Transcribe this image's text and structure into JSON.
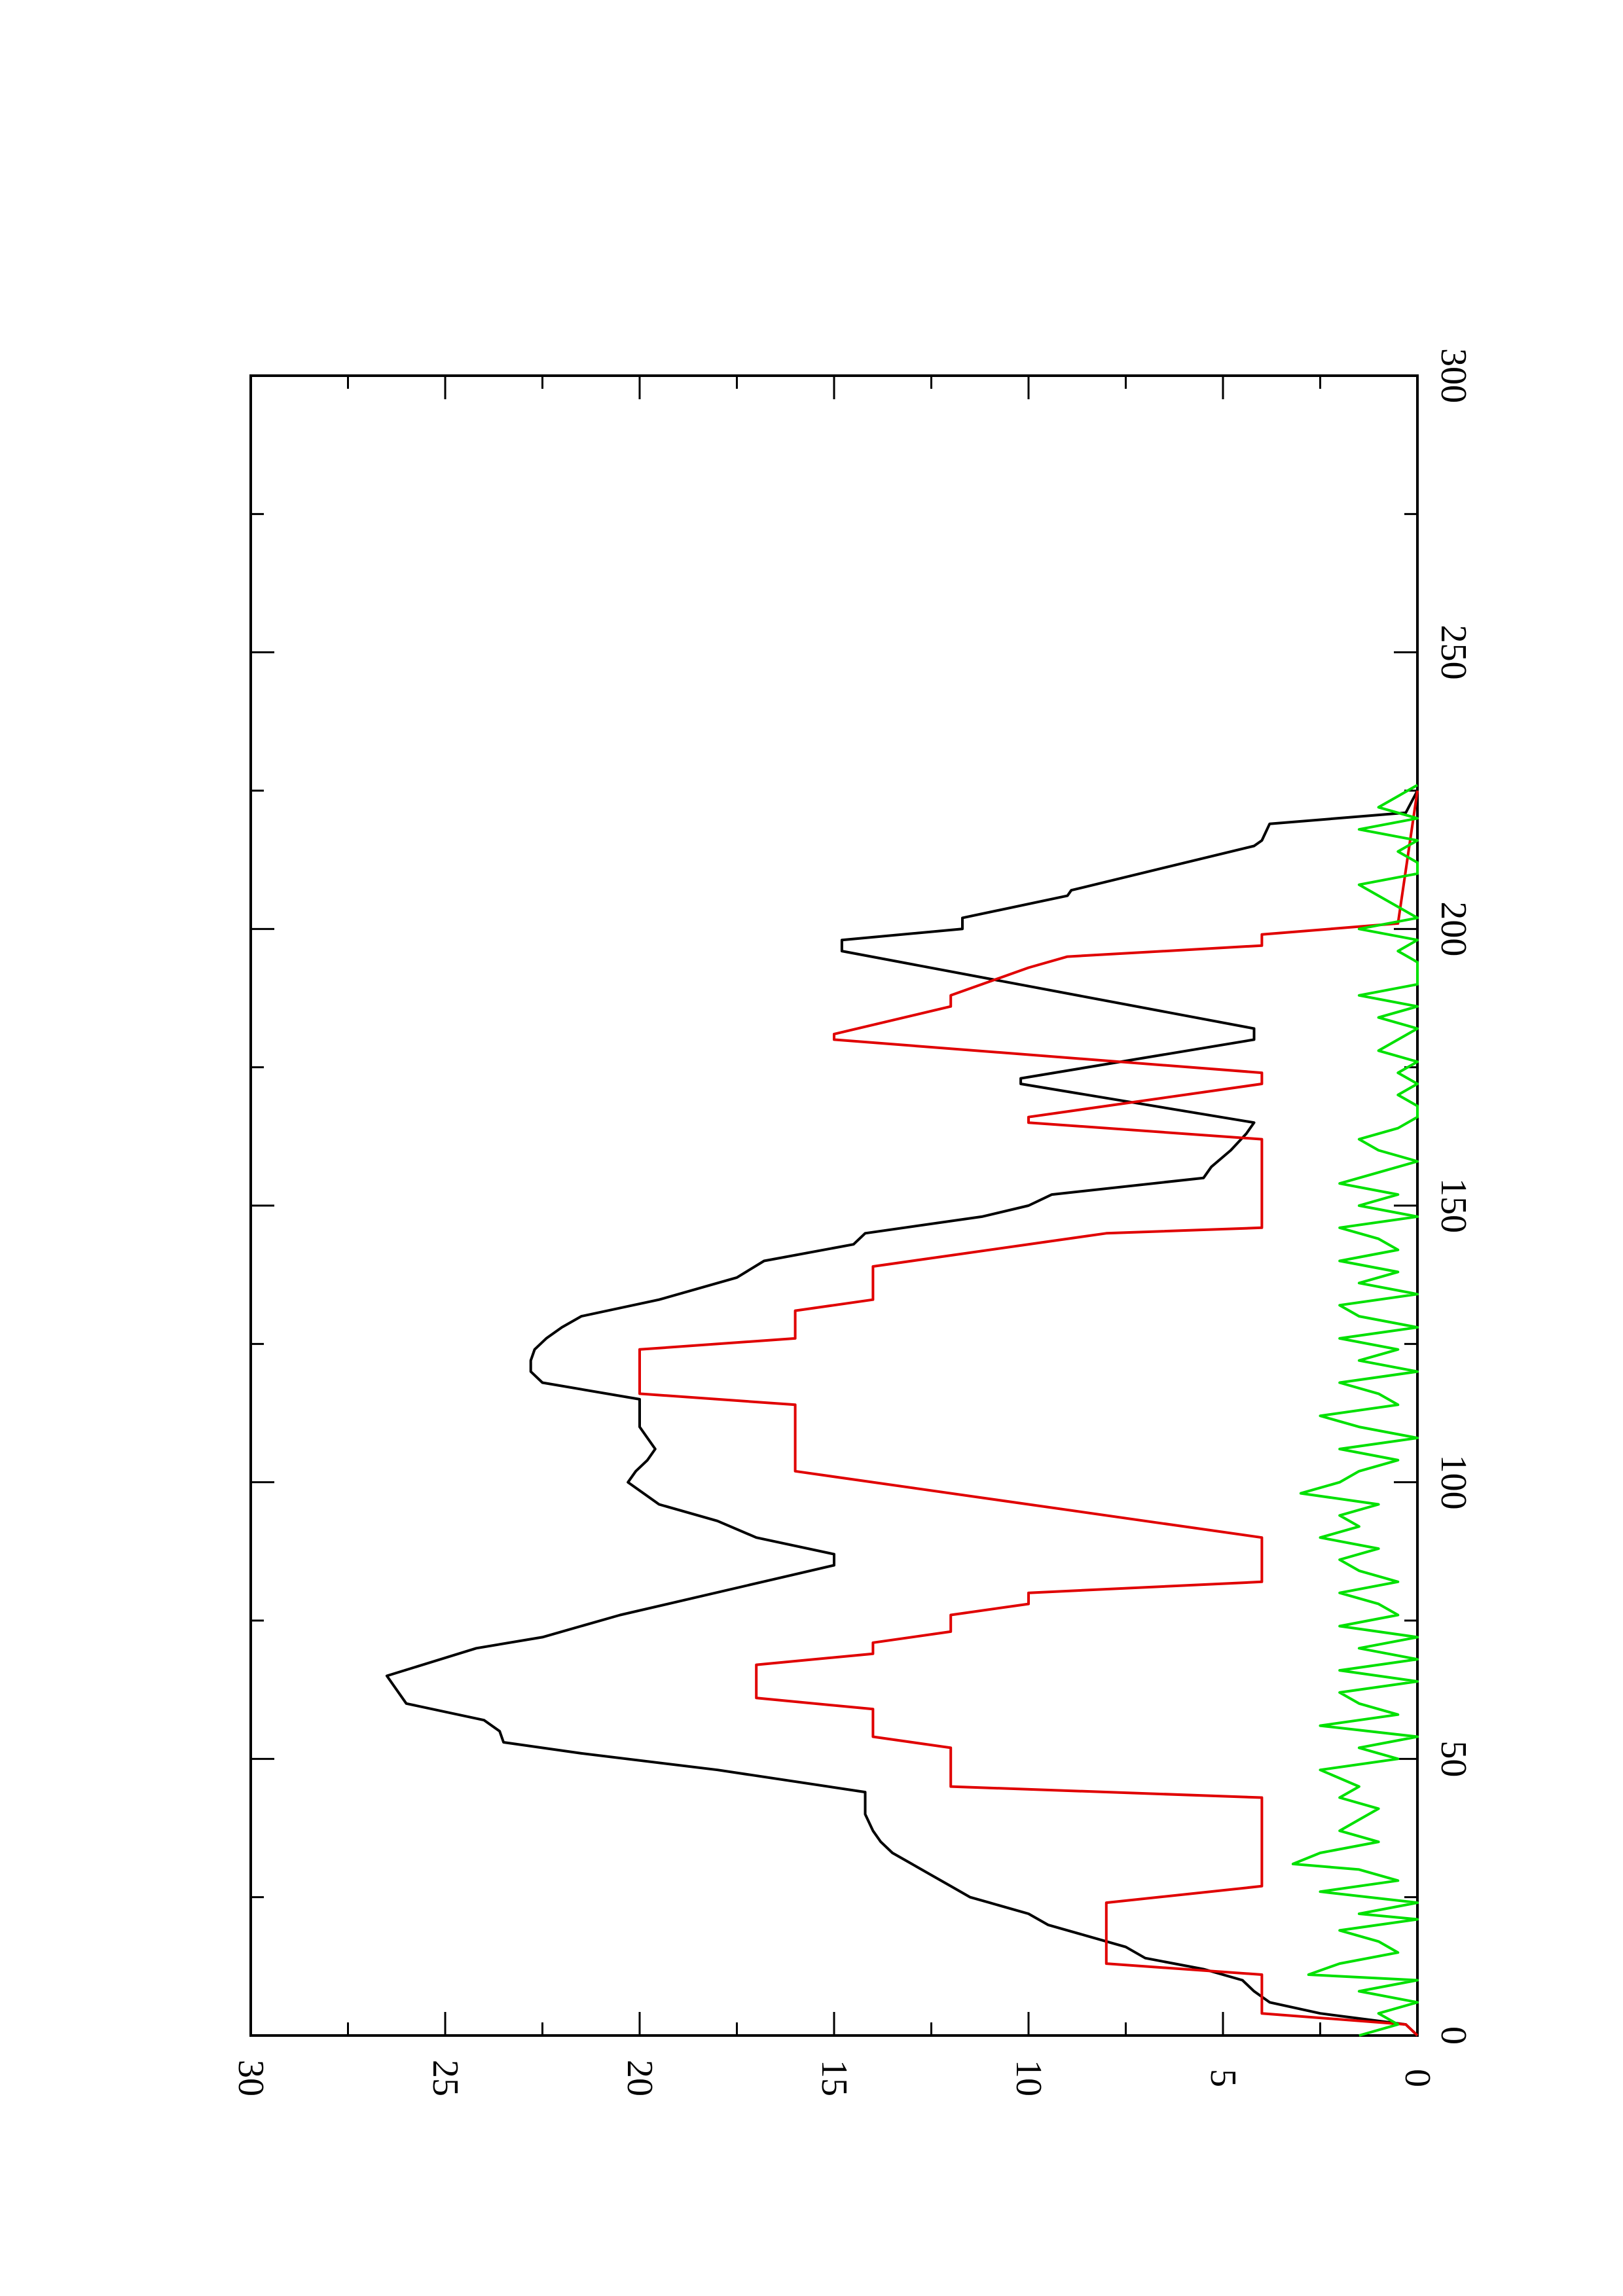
{
  "chart_data": {
    "type": "line",
    "orientation": "rotated-90-clockwise",
    "title": "",
    "xlabel": "",
    "ylabel": "",
    "xlim": [
      0,
      300
    ],
    "ylim": [
      0,
      30
    ],
    "x_ticks": [
      "0",
      "50",
      "100",
      "150",
      "200",
      "250",
      "300"
    ],
    "y_ticks": [
      "0",
      "5",
      "10",
      "15",
      "20",
      "25",
      "30"
    ],
    "grid": false,
    "legend": "none",
    "series": [
      {
        "color": "#000000",
        "points": [
          [
            0,
            0
          ],
          [
            2,
            0.3
          ],
          [
            4,
            2.5
          ],
          [
            6,
            3.8
          ],
          [
            8,
            4.2
          ],
          [
            10,
            4.5
          ],
          [
            12,
            5.5
          ],
          [
            14,
            7
          ],
          [
            16,
            7.5
          ],
          [
            18,
            8.5
          ],
          [
            20,
            9.5
          ],
          [
            22,
            10
          ],
          [
            24,
            11
          ],
          [
            25,
            11.5
          ],
          [
            27,
            12
          ],
          [
            29,
            12.5
          ],
          [
            31,
            13
          ],
          [
            33,
            13.5
          ],
          [
            35,
            13.8
          ],
          [
            37,
            14
          ],
          [
            40,
            14.2
          ],
          [
            44,
            14.2
          ],
          [
            48,
            18
          ],
          [
            51,
            21.5
          ],
          [
            53,
            23.5
          ],
          [
            55,
            23.6
          ],
          [
            57,
            24
          ],
          [
            60,
            26
          ],
          [
            62,
            26.2
          ],
          [
            65,
            26.5
          ],
          [
            70,
            24.2
          ],
          [
            72,
            22.5
          ],
          [
            76,
            20.5
          ],
          [
            85,
            15
          ],
          [
            87,
            15
          ],
          [
            90,
            17
          ],
          [
            93,
            18
          ],
          [
            96,
            19.5
          ],
          [
            100,
            20.3
          ],
          [
            102,
            20.1
          ],
          [
            104,
            19.8
          ],
          [
            106,
            19.6
          ],
          [
            108,
            19.8
          ],
          [
            110,
            20
          ],
          [
            112,
            20
          ],
          [
            115,
            20
          ],
          [
            118,
            22.5
          ],
          [
            120,
            22.8
          ],
          [
            122,
            22.8
          ],
          [
            124,
            22.7
          ],
          [
            126,
            22.4
          ],
          [
            128,
            22
          ],
          [
            130,
            21.5
          ],
          [
            133,
            19.5
          ],
          [
            135,
            18.5
          ],
          [
            137,
            17.5
          ],
          [
            140,
            16.8
          ],
          [
            143,
            14.5
          ],
          [
            145,
            14.2
          ],
          [
            148,
            11.2
          ],
          [
            150,
            10
          ],
          [
            152,
            9.4
          ],
          [
            155,
            5.5
          ],
          [
            157,
            5.3
          ],
          [
            160,
            4.8
          ],
          [
            163,
            4.4
          ],
          [
            165,
            4.2
          ],
          [
            172,
            10.2
          ],
          [
            173,
            10.2
          ],
          [
            180,
            4.2
          ],
          [
            182,
            4.2
          ],
          [
            196,
            14.8
          ],
          [
            198,
            14.8
          ],
          [
            200,
            11.7
          ],
          [
            202,
            11.7
          ],
          [
            206,
            9
          ],
          [
            207,
            8.9
          ],
          [
            215,
            4.2
          ],
          [
            216,
            4
          ],
          [
            219,
            3.8
          ],
          [
            221,
            0.3
          ],
          [
            225,
            0
          ]
        ]
      },
      {
        "color": "#e00000",
        "points": [
          [
            0,
            0
          ],
          [
            2,
            0.3
          ],
          [
            4,
            4
          ],
          [
            11,
            4
          ],
          [
            13,
            8
          ],
          [
            24,
            8
          ],
          [
            27,
            4
          ],
          [
            43,
            4
          ],
          [
            45,
            12
          ],
          [
            52,
            12
          ],
          [
            54,
            14
          ],
          [
            59,
            14
          ],
          [
            61,
            17
          ],
          [
            67,
            17
          ],
          [
            69,
            14
          ],
          [
            71,
            14
          ],
          [
            73,
            12
          ],
          [
            76,
            12
          ],
          [
            78,
            10
          ],
          [
            80,
            10
          ],
          [
            82,
            4
          ],
          [
            90,
            4
          ],
          [
            102,
            16
          ],
          [
            114,
            16
          ],
          [
            116,
            20
          ],
          [
            124,
            20
          ],
          [
            126,
            16
          ],
          [
            131,
            16
          ],
          [
            133,
            14
          ],
          [
            139,
            14
          ],
          [
            145,
            8
          ],
          [
            146,
            4
          ],
          [
            162,
            4
          ],
          [
            165,
            10
          ],
          [
            166,
            10
          ],
          [
            172,
            4
          ],
          [
            174,
            4
          ],
          [
            180,
            15
          ],
          [
            181,
            15
          ],
          [
            186,
            12
          ],
          [
            188,
            12
          ],
          [
            193,
            10
          ],
          [
            195,
            9
          ],
          [
            197,
            4
          ],
          [
            199,
            4
          ],
          [
            201,
            0.5
          ],
          [
            225,
            0
          ]
        ]
      },
      {
        "color": "#00e000",
        "points": [
          [
            0,
            1.5
          ],
          [
            2,
            0.5
          ],
          [
            4,
            1
          ],
          [
            6,
            0
          ],
          [
            8,
            1.5
          ],
          [
            10,
            0
          ],
          [
            11,
            2.8
          ],
          [
            13,
            2
          ],
          [
            15,
            0.5
          ],
          [
            17,
            1
          ],
          [
            19,
            2
          ],
          [
            21,
            0
          ],
          [
            22,
            1.5
          ],
          [
            24,
            0
          ],
          [
            26,
            2.5
          ],
          [
            28,
            0.5
          ],
          [
            30,
            1.5
          ],
          [
            31,
            3.2
          ],
          [
            33,
            2.5
          ],
          [
            35,
            1
          ],
          [
            37,
            2
          ],
          [
            39,
            1.5
          ],
          [
            41,
            1
          ],
          [
            43,
            2
          ],
          [
            45,
            1.5
          ],
          [
            48,
            2.5
          ],
          [
            50,
            0.5
          ],
          [
            52,
            1.5
          ],
          [
            54,
            0
          ],
          [
            56,
            2.5
          ],
          [
            58,
            0.5
          ],
          [
            60,
            1.5
          ],
          [
            62,
            2
          ],
          [
            64,
            0
          ],
          [
            66,
            2
          ],
          [
            68,
            0
          ],
          [
            70,
            1.5
          ],
          [
            72,
            0
          ],
          [
            74,
            2
          ],
          [
            76,
            0.5
          ],
          [
            78,
            1
          ],
          [
            80,
            2
          ],
          [
            82,
            0.5
          ],
          [
            84,
            1.5
          ],
          [
            86,
            2
          ],
          [
            88,
            1
          ],
          [
            90,
            2.5
          ],
          [
            92,
            1.5
          ],
          [
            94,
            2
          ],
          [
            96,
            1
          ],
          [
            98,
            3
          ],
          [
            100,
            2
          ],
          [
            102,
            1.5
          ],
          [
            104,
            0.5
          ],
          [
            106,
            2
          ],
          [
            108,
            0
          ],
          [
            110,
            1.5
          ],
          [
            112,
            2.5
          ],
          [
            114,
            0.5
          ],
          [
            116,
            1
          ],
          [
            118,
            2
          ],
          [
            120,
            0
          ],
          [
            122,
            1.5
          ],
          [
            124,
            0.5
          ],
          [
            126,
            2
          ],
          [
            128,
            0
          ],
          [
            130,
            1.5
          ],
          [
            132,
            2
          ],
          [
            134,
            0
          ],
          [
            136,
            1.5
          ],
          [
            138,
            0.5
          ],
          [
            140,
            2
          ],
          [
            142,
            0.5
          ],
          [
            144,
            1
          ],
          [
            146,
            2
          ],
          [
            148,
            0
          ],
          [
            150,
            1.5
          ],
          [
            152,
            0.5
          ],
          [
            154,
            2
          ],
          [
            156,
            1
          ],
          [
            158,
            0
          ],
          [
            160,
            1
          ],
          [
            162,
            1.5
          ],
          [
            164,
            0.5
          ],
          [
            166,
            0
          ],
          [
            168,
            0
          ],
          [
            170,
            0.5
          ],
          [
            172,
            0
          ],
          [
            174,
            0.5
          ],
          [
            176,
            0
          ],
          [
            178,
            1
          ],
          [
            180,
            0.5
          ],
          [
            182,
            0
          ],
          [
            184,
            1
          ],
          [
            186,
            0
          ],
          [
            188,
            1.5
          ],
          [
            190,
            0
          ],
          [
            192,
            0
          ],
          [
            194,
            0
          ],
          [
            196,
            0.5
          ],
          [
            198,
            0
          ],
          [
            200,
            1.5
          ],
          [
            202,
            0
          ],
          [
            204,
            0.5
          ],
          [
            206,
            1
          ],
          [
            208,
            1.5
          ],
          [
            210,
            0
          ],
          [
            212,
            0
          ],
          [
            214,
            0.5
          ],
          [
            216,
            0
          ],
          [
            218,
            1.5
          ],
          [
            220,
            0
          ],
          [
            222,
            1
          ],
          [
            224,
            0.5
          ],
          [
            226,
            0
          ]
        ]
      }
    ]
  }
}
